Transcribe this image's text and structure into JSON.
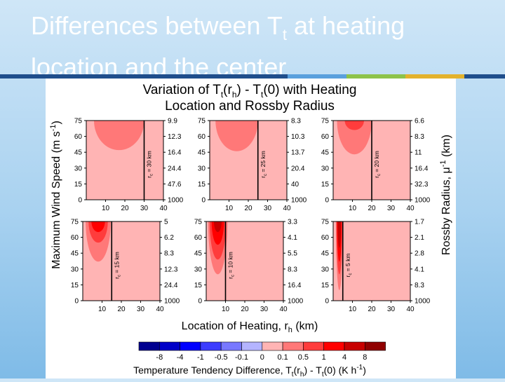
{
  "slide": {
    "title_prefix": "Differences between T",
    "title_sub": "t",
    "title_suffix": " at heating location and the center"
  },
  "colors": {
    "stripe": [
      "#1f4e8c",
      "#5aa0dd",
      "#8dc34a",
      "#e3b22c",
      "#1f4e8c"
    ]
  },
  "chart_data": {
    "type": "heatmap",
    "title_lines": [
      {
        "pre": "Variation of T",
        "sub1": "t",
        "mid": "(r",
        "sub2": "h",
        "post": ") - T",
        "sub3": "t",
        "end": "(0) with Heating"
      },
      {
        "text": "Location and Rossby Radius"
      }
    ],
    "xlabel": {
      "pre": "Location of Heating, r",
      "sub": "h",
      "post": " (km)"
    },
    "ylabel": {
      "pre": "Maximum Wind Speed (m s",
      "sup": "-1",
      "post": ")"
    },
    "y2label": {
      "pre": "Rossby Radius, μ",
      "sup": "-1",
      "post": " (km)"
    },
    "x_ticks": [
      10,
      20,
      30,
      40
    ],
    "y_ticks": [
      0,
      15,
      30,
      45,
      60,
      75
    ],
    "xlim": [
      0,
      40
    ],
    "ylim": [
      0,
      75
    ],
    "panels": [
      {
        "rc": 30,
        "label": "r",
        "label_sub": "c",
        "label_post": " = 30 km",
        "y2_ticks": [
          "1000",
          "47.6",
          "24.4",
          "16.4",
          "12.3",
          "9.9"
        ],
        "regions": [
          {
            "level": "0.5",
            "cx": 17,
            "cy": 75,
            "rx": 13,
            "ry": 28
          }
        ]
      },
      {
        "rc": 25,
        "label": "r",
        "label_sub": "c",
        "label_post": " = 25 km",
        "y2_ticks": [
          "1000",
          "40",
          "20.4",
          "13.7",
          "10.3",
          "8.3"
        ],
        "regions": [
          {
            "level": "0.5",
            "cx": 14,
            "cy": 75,
            "rx": 11,
            "ry": 29
          }
        ]
      },
      {
        "rc": 20,
        "label": "r",
        "label_sub": "c",
        "label_post": " = 20 km",
        "y2_ticks": [
          "1000",
          "32.3",
          "16.4",
          "11",
          "8.3",
          "6.6"
        ],
        "regions": [
          {
            "level": "0.5",
            "cx": 11,
            "cy": 75,
            "rx": 9,
            "ry": 32
          },
          {
            "level": "1",
            "cx": 11,
            "cy": 75,
            "rx": 5,
            "ry": 9
          }
        ]
      },
      {
        "rc": 15,
        "label": "r",
        "label_sub": "c",
        "label_post": " = 15 km",
        "y2_ticks": [
          "1000",
          "24.4",
          "12.3",
          "8.3",
          "6.2",
          "5"
        ],
        "regions": [
          {
            "level": "0.5",
            "cx": 8,
            "cy": 75,
            "rx": 6.5,
            "ry": 38
          },
          {
            "level": "1",
            "cx": 8,
            "cy": 75,
            "rx": 5,
            "ry": 20
          },
          {
            "level": "4",
            "cx": 8,
            "cy": 75,
            "rx": 3.5,
            "ry": 10
          }
        ]
      },
      {
        "rc": 10,
        "label": "r",
        "label_sub": "c",
        "label_post": " = 10 km",
        "y2_ticks": [
          "1000",
          "16.4",
          "8.3",
          "5.5",
          "4.1",
          "3.3"
        ],
        "regions": [
          {
            "level": "0.5",
            "cx": 6,
            "cy": 75,
            "rx": 5,
            "ry": 50
          },
          {
            "level": "1",
            "cx": 6,
            "cy": 75,
            "rx": 4.2,
            "ry": 36
          },
          {
            "level": "4",
            "cx": 6,
            "cy": 75,
            "rx": 3.2,
            "ry": 22
          },
          {
            "level": "8",
            "cx": 6,
            "cy": 75,
            "rx": 2,
            "ry": 10
          }
        ]
      },
      {
        "rc": 5,
        "label": "r",
        "label_sub": "c",
        "label_post": " = 5 km",
        "y2_ticks": [
          "1000",
          "8.3",
          "4.1",
          "2.8",
          "2.1",
          "1.7"
        ],
        "regions": [
          {
            "level": "0.5",
            "cx": 3.2,
            "cy": 75,
            "rx": 1.8,
            "ry": 65
          },
          {
            "level": "1",
            "cx": 3.2,
            "cy": 75,
            "rx": 1.5,
            "ry": 50
          },
          {
            "level": "4",
            "cx": 3.2,
            "cy": 75,
            "rx": 1.2,
            "ry": 38
          },
          {
            "level": "8",
            "cx": 3.2,
            "cy": 75,
            "rx": 0.9,
            "ry": 25
          }
        ]
      }
    ],
    "background_level": "0.1",
    "colorbar": {
      "labels": [
        "-8",
        "-4",
        "-1",
        "-0.5",
        "-0.1",
        "0",
        "0.1",
        "0.5",
        "1",
        "4",
        "8"
      ],
      "colors": [
        "#000090",
        "#0000c8",
        "#0000ff",
        "#3c3cff",
        "#7878ff",
        "#b4b4ff",
        "#ffb4b4",
        "#ff7878",
        "#ff3c3c",
        "#ff0000",
        "#c80000",
        "#900000"
      ],
      "title": {
        "pre": "Temperature Tendency Difference, T",
        "sub1": "t",
        "mid": "(r",
        "sub2": "h",
        "post": ") - T",
        "sub3": "t",
        "end": "(0) (K h",
        "sup": "-1",
        "close": ")"
      }
    },
    "level_colors": {
      "0.1": "#ffb4b4",
      "0.5": "#ff7878",
      "1": "#ff3c3c",
      "4": "#ff0000",
      "8": "#c80000"
    }
  }
}
